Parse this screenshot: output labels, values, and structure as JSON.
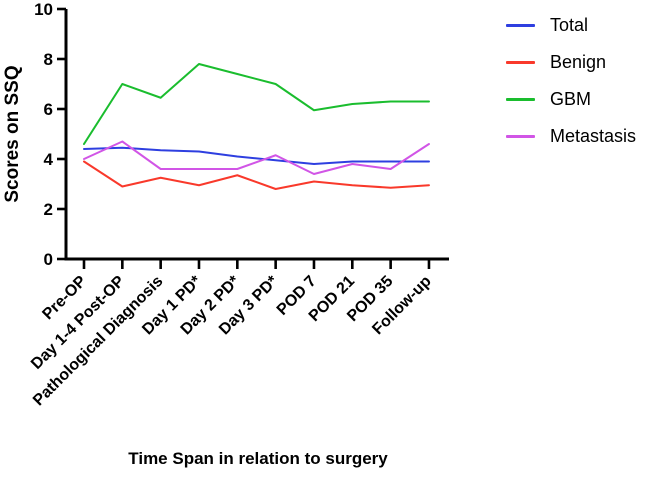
{
  "chart_data": {
    "type": "line",
    "xlabel": "Time Span in relation to surgery",
    "ylabel": "Scores on SSQ",
    "ylim": [
      0,
      10
    ],
    "yticks": [
      0,
      2,
      4,
      6,
      8,
      10
    ],
    "grid": false,
    "legend_position": "top-right",
    "categories": [
      "Pre-OP",
      "Day 1-4 Post-OP",
      "Pathological Diagnosis",
      "Day 1 PD*",
      "Day 2 PD*",
      "Day 3 PD*",
      "POD 7",
      "POD 21",
      "POD 35",
      "Follow-up"
    ],
    "series": [
      {
        "name": "Total",
        "color": "#2e3fe0",
        "values": [
          4.4,
          4.45,
          4.35,
          4.3,
          4.1,
          3.95,
          3.8,
          3.9,
          3.9,
          3.9
        ]
      },
      {
        "name": "Benign",
        "color": "#f9392b",
        "values": [
          3.9,
          2.9,
          3.25,
          2.95,
          3.35,
          2.8,
          3.1,
          2.95,
          2.85,
          2.95
        ]
      },
      {
        "name": "GBM",
        "color": "#1abd2e",
        "values": [
          4.6,
          7.0,
          6.45,
          7.8,
          7.4,
          7.0,
          5.95,
          6.2,
          6.3,
          6.3
        ]
      },
      {
        "name": "Metastasis",
        "color": "#d155e6",
        "values": [
          4.0,
          4.7,
          3.6,
          3.6,
          3.6,
          4.15,
          3.4,
          3.8,
          3.6,
          4.6
        ]
      }
    ],
    "axis_color": "#000000"
  }
}
